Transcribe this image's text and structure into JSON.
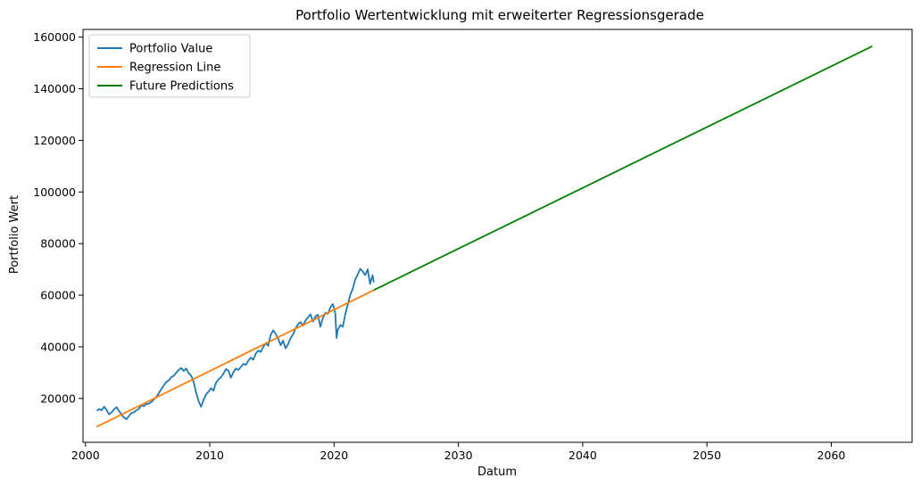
{
  "chart_data": {
    "type": "line",
    "title": "Portfolio Wertentwicklung mit erweiterter Regressionsgerade",
    "xlabel": "Datum",
    "ylabel": "Portfolio Wert",
    "xlim": [
      1999.8,
      2066.5
    ],
    "ylim": [
      3000,
      163000
    ],
    "xticks": [
      2000,
      2010,
      2020,
      2030,
      2040,
      2050,
      2060
    ],
    "yticks": [
      20000,
      40000,
      60000,
      80000,
      100000,
      120000,
      140000,
      160000
    ],
    "grid": false,
    "legend_position": "top-left",
    "series": [
      {
        "name": "Portfolio Value",
        "color": "#1f77b4",
        "points": [
          [
            2000.9,
            15200
          ],
          [
            2001.1,
            15900
          ],
          [
            2001.3,
            15400
          ],
          [
            2001.5,
            16800
          ],
          [
            2001.7,
            15500
          ],
          [
            2001.9,
            13800
          ],
          [
            2002.1,
            14600
          ],
          [
            2002.3,
            15800
          ],
          [
            2002.5,
            16600
          ],
          [
            2002.7,
            15200
          ],
          [
            2002.9,
            13700
          ],
          [
            2003.1,
            12600
          ],
          [
            2003.3,
            12000
          ],
          [
            2003.5,
            13200
          ],
          [
            2003.7,
            14400
          ],
          [
            2003.9,
            14600
          ],
          [
            2004.1,
            15400
          ],
          [
            2004.3,
            16000
          ],
          [
            2004.5,
            17400
          ],
          [
            2004.7,
            17000
          ],
          [
            2004.9,
            17800
          ],
          [
            2005.1,
            18000
          ],
          [
            2005.3,
            18600
          ],
          [
            2005.5,
            19600
          ],
          [
            2005.7,
            20600
          ],
          [
            2005.9,
            22000
          ],
          [
            2006.1,
            23600
          ],
          [
            2006.3,
            25000
          ],
          [
            2006.5,
            26400
          ],
          [
            2006.7,
            27000
          ],
          [
            2006.9,
            28200
          ],
          [
            2007.1,
            28800
          ],
          [
            2007.3,
            30000
          ],
          [
            2007.5,
            31000
          ],
          [
            2007.7,
            31800
          ],
          [
            2007.9,
            30600
          ],
          [
            2008.1,
            31600
          ],
          [
            2008.3,
            29800
          ],
          [
            2008.5,
            28800
          ],
          [
            2008.7,
            26400
          ],
          [
            2008.9,
            22400
          ],
          [
            2009.1,
            19000
          ],
          [
            2009.3,
            16800
          ],
          [
            2009.5,
            19400
          ],
          [
            2009.7,
            21600
          ],
          [
            2009.9,
            22600
          ],
          [
            2010.1,
            24000
          ],
          [
            2010.3,
            23000
          ],
          [
            2010.5,
            26000
          ],
          [
            2010.7,
            27400
          ],
          [
            2010.9,
            28200
          ],
          [
            2011.1,
            29600
          ],
          [
            2011.3,
            31400
          ],
          [
            2011.5,
            30800
          ],
          [
            2011.7,
            28000
          ],
          [
            2011.9,
            30200
          ],
          [
            2012.1,
            31600
          ],
          [
            2012.3,
            31000
          ],
          [
            2012.5,
            32200
          ],
          [
            2012.7,
            33400
          ],
          [
            2012.9,
            33000
          ],
          [
            2013.1,
            34600
          ],
          [
            2013.3,
            35800
          ],
          [
            2013.5,
            35000
          ],
          [
            2013.7,
            37400
          ],
          [
            2013.9,
            38600
          ],
          [
            2014.1,
            38000
          ],
          [
            2014.3,
            40000
          ],
          [
            2014.5,
            41400
          ],
          [
            2014.7,
            40400
          ],
          [
            2014.9,
            44600
          ],
          [
            2015.1,
            46400
          ],
          [
            2015.3,
            45000
          ],
          [
            2015.5,
            43200
          ],
          [
            2015.7,
            40600
          ],
          [
            2015.9,
            42400
          ],
          [
            2016.1,
            39400
          ],
          [
            2016.3,
            41000
          ],
          [
            2016.5,
            43400
          ],
          [
            2016.7,
            44800
          ],
          [
            2016.9,
            47200
          ],
          [
            2017.1,
            48800
          ],
          [
            2017.3,
            49600
          ],
          [
            2017.5,
            48200
          ],
          [
            2017.7,
            50200
          ],
          [
            2017.9,
            51400
          ],
          [
            2018.1,
            52600
          ],
          [
            2018.3,
            49800
          ],
          [
            2018.5,
            51800
          ],
          [
            2018.7,
            52400
          ],
          [
            2018.9,
            47800
          ],
          [
            2019.1,
            51200
          ],
          [
            2019.3,
            53200
          ],
          [
            2019.5,
            52800
          ],
          [
            2019.7,
            55200
          ],
          [
            2019.9,
            56600
          ],
          [
            2020.1,
            53000
          ],
          [
            2020.2,
            43400
          ],
          [
            2020.3,
            46600
          ],
          [
            2020.5,
            48400
          ],
          [
            2020.7,
            47800
          ],
          [
            2020.9,
            52600
          ],
          [
            2021.1,
            56400
          ],
          [
            2021.3,
            60200
          ],
          [
            2021.5,
            62400
          ],
          [
            2021.7,
            66000
          ],
          [
            2021.9,
            68000
          ],
          [
            2022.1,
            70200
          ],
          [
            2022.3,
            69200
          ],
          [
            2022.5,
            67800
          ],
          [
            2022.7,
            70000
          ],
          [
            2022.9,
            64400
          ],
          [
            2023.1,
            67800
          ],
          [
            2023.2,
            65000
          ]
        ]
      },
      {
        "name": "Regression Line",
        "color": "#ff7f0e",
        "points": [
          [
            2000.9,
            9000
          ],
          [
            2023.2,
            62000
          ]
        ]
      },
      {
        "name": "Future Predictions",
        "color": "#008000",
        "points": [
          [
            2023.2,
            62000
          ],
          [
            2063.3,
            156500
          ]
        ]
      }
    ]
  }
}
